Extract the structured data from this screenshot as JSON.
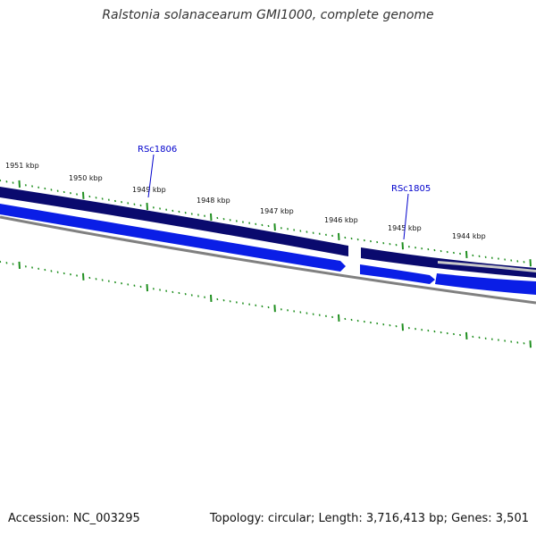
{
  "title": "Ralstonia solanacearum GMI1000, complete genome",
  "footer": {
    "accession": "Accession: NC_003295",
    "stats": "Topology: circular; Length: 3,716,413 bp; Genes: 3,501"
  },
  "ruler": {
    "labels": [
      "1951 kbp",
      "1950 kbp",
      "1949 kbp",
      "1948 kbp",
      "1947 kbp",
      "1946 kbp",
      "1945 kbp",
      "1944 kbp"
    ]
  },
  "genes": [
    {
      "label": "RSc1806"
    },
    {
      "label": "RSc1805"
    }
  ],
  "colors": {
    "forward_track": "#0a0a6e",
    "reverse_track": "#0a1ee6",
    "backbone": "#808080",
    "tick": "#1f8f1f",
    "gene_label": "#0000cc"
  }
}
